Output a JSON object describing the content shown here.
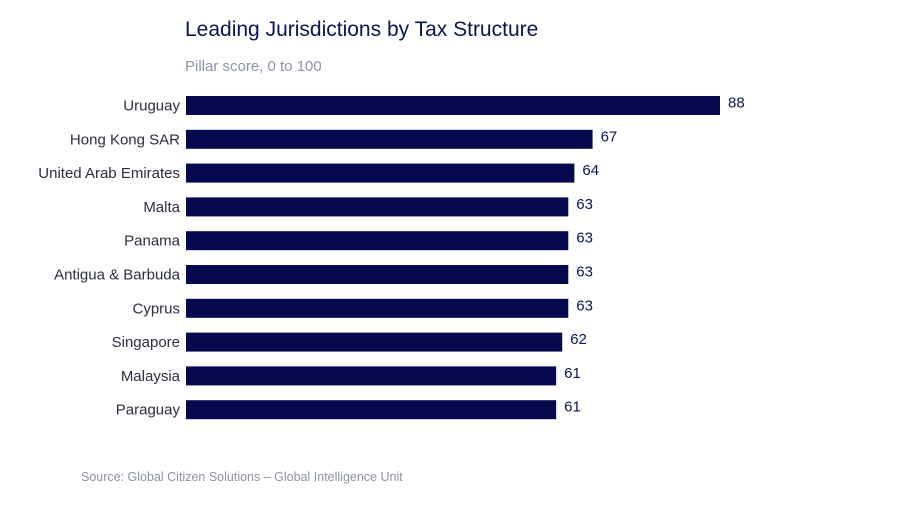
{
  "chart_data": {
    "type": "bar",
    "orientation": "horizontal",
    "title": "Leading Jurisdictions by Tax Structure",
    "subtitle": "Pillar score, 0 to 100",
    "categories": [
      "Uruguay",
      "Hong Kong SAR",
      "United Arab Emirates",
      "Malta",
      "Panama",
      "Antigua & Barbuda",
      "Cyprus",
      "Singapore",
      "Malaysia",
      "Paraguay"
    ],
    "values": [
      88,
      67,
      64,
      63,
      63,
      63,
      63,
      62,
      61,
      61
    ],
    "xlim": [
      0,
      100
    ],
    "grid": false,
    "legend": "none",
    "bar_color": "#050a4f",
    "source": "Source: Global Citizen Solutions – Global Intelligence Unit"
  }
}
